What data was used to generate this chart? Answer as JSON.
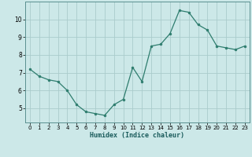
{
  "x": [
    0,
    1,
    2,
    3,
    4,
    5,
    6,
    7,
    8,
    9,
    10,
    11,
    12,
    13,
    14,
    15,
    16,
    17,
    18,
    19,
    20,
    21,
    22,
    23
  ],
  "y": [
    7.2,
    6.8,
    6.6,
    6.5,
    6.0,
    5.2,
    4.8,
    4.7,
    4.6,
    5.2,
    5.5,
    7.3,
    6.5,
    8.5,
    8.6,
    9.2,
    10.5,
    10.4,
    9.7,
    9.4,
    8.5,
    8.4,
    8.3,
    8.5
  ],
  "xlabel": "Humidex (Indice chaleur)",
  "xlim": [
    -0.5,
    23.5
  ],
  "ylim": [
    4.2,
    11.0
  ],
  "yticks": [
    5,
    6,
    7,
    8,
    9,
    10
  ],
  "xticks": [
    0,
    1,
    2,
    3,
    4,
    5,
    6,
    7,
    8,
    9,
    10,
    11,
    12,
    13,
    14,
    15,
    16,
    17,
    18,
    19,
    20,
    21,
    22,
    23
  ],
  "line_color": "#2e7d6e",
  "marker_color": "#2e7d6e",
  "bg_color": "#cce8e8",
  "grid_color": "#aacccc"
}
